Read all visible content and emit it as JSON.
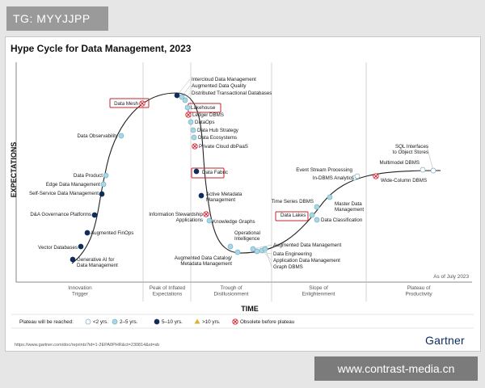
{
  "tag": "TG: MYYJJPP",
  "watermark": "www.contrast-media.cn",
  "url": "https://www.gartner.com/doc/reprints?id=1-2EPA0PHR&ct=230814&st=sb",
  "brand": "Gartner",
  "chart_data": {
    "type": "scatter",
    "title": "Hype Cycle for Data Management, 2023",
    "xlabel": "TIME",
    "ylabel": "EXPECTATIONS",
    "as_of": "As of July 2023",
    "phases": [
      "Innovation\nTrigger",
      "Peak of Inflated\nExpectations",
      "Trough of\nDisillusionment",
      "Slope of\nEnlightenment",
      "Plateau of\nProductivity"
    ],
    "colors": {
      "lt2": "#ffffff",
      "y2to5": "#a8d8e8",
      "y5to10": "#0e2d5a",
      "gt10": "#e0b030",
      "obsolete": "#d02030",
      "highlight": "#c0262d"
    },
    "legend": {
      "title": "Plateau will be reached:",
      "items": [
        {
          "key": "lt2",
          "label": "<2 yrs."
        },
        {
          "key": "y2to5",
          "label": "2–5 yrs."
        },
        {
          "key": "y5to10",
          "label": "5–10 yrs."
        },
        {
          "key": "gt10",
          "label": ">10 yrs."
        },
        {
          "key": "obsolete",
          "label": "Obsolete before plateau"
        }
      ]
    },
    "points": [
      {
        "label": "Generative AI for Data Management",
        "cat": "y5to10"
      },
      {
        "label": "Vector Databases",
        "cat": "y5to10"
      },
      {
        "label": "Augmented FinOps",
        "cat": "y5to10"
      },
      {
        "label": "D&A Governance Platforms",
        "cat": "y5to10"
      },
      {
        "label": "Self-Service Data Management",
        "cat": "y5to10"
      },
      {
        "label": "Edge Data Management",
        "cat": "y2to5"
      },
      {
        "label": "Data Product",
        "cat": "y2to5"
      },
      {
        "label": "Data Observability",
        "cat": "y2to5"
      },
      {
        "label": "Data Mesh",
        "cat": "obsolete",
        "highlight": true
      },
      {
        "label": "Intercloud Data Management",
        "cat": "y5to10"
      },
      {
        "label": "Augmented Data Quality",
        "cat": "y2to5"
      },
      {
        "label": "Distributed Transactional Databases",
        "cat": "y2to5"
      },
      {
        "label": "Lakehouse",
        "cat": "y2to5",
        "highlight": true
      },
      {
        "label": "Ledger DBMS",
        "cat": "obsolete"
      },
      {
        "label": "DataOps",
        "cat": "y2to5"
      },
      {
        "label": "Data Hub Strategy",
        "cat": "y2to5"
      },
      {
        "label": "Data Ecosystems",
        "cat": "y2to5"
      },
      {
        "label": "Private Cloud dbPaaS",
        "cat": "obsolete"
      },
      {
        "label": "Data Fabric",
        "cat": "y5to10",
        "highlight": true
      },
      {
        "label": "Active Metadata Management",
        "cat": "y5to10"
      },
      {
        "label": "Information Stewardship Applications",
        "cat": "obsolete"
      },
      {
        "label": "Knowledge Graphs",
        "cat": "y2to5"
      },
      {
        "label": "Operational Intelligence",
        "cat": "y2to5"
      },
      {
        "label": "Augmented Data Catalog/ Metadata Management",
        "cat": "y2to5"
      },
      {
        "label": "Augmented Data Management",
        "cat": "y2to5"
      },
      {
        "label": "Data Engineering",
        "cat": "y2to5"
      },
      {
        "label": "Application Data Management",
        "cat": "y2to5"
      },
      {
        "label": "Graph DBMS",
        "cat": "y2to5"
      },
      {
        "label": "Time Series DBMS",
        "cat": "y2to5"
      },
      {
        "label": "Data Lakes",
        "cat": "y2to5",
        "highlight": true
      },
      {
        "label": "Data Classification",
        "cat": "y2to5"
      },
      {
        "label": "Master Data Management",
        "cat": "y2to5"
      },
      {
        "label": "Event Stream Processing",
        "cat": "lt2"
      },
      {
        "label": "In-DBMS Analytics",
        "cat": "lt2"
      },
      {
        "label": "Wide-Column DBMS",
        "cat": "obsolete"
      },
      {
        "label": "Multimodel DBMS",
        "cat": "lt2"
      },
      {
        "label": "SQL Interfaces to Object Stores",
        "cat": "lt2"
      }
    ]
  }
}
